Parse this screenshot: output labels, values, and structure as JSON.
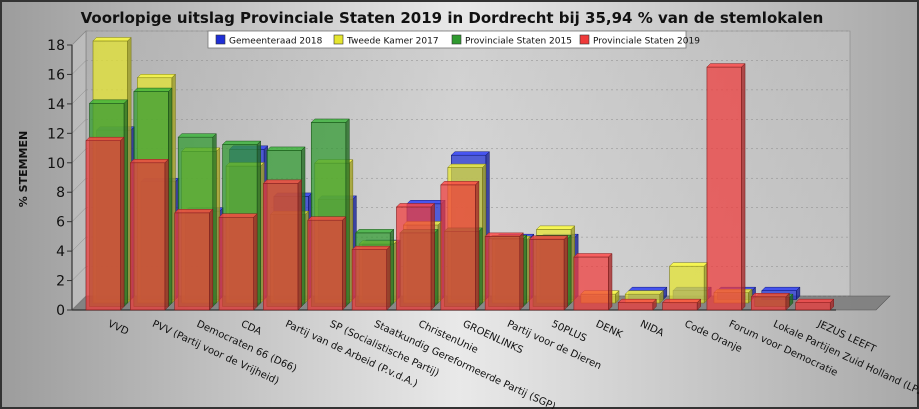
{
  "chart_data": {
    "type": "bar",
    "title": "Voorlopige uitslag Provinciale Staten 2019 in Dordrecht bij 35,94 % van de stemlokalen",
    "xlabel": "",
    "ylabel": "% STEMMEN",
    "ylim": [
      0,
      18
    ],
    "yticks": [
      "0",
      "2",
      "4",
      "6",
      "8",
      "10",
      "12",
      "14",
      "16",
      "18"
    ],
    "legend_position": "top-center",
    "categories": [
      "VVD",
      "PVV (Partij voor de Vrijheid)",
      "Democraten 66 (D66)",
      "CDA",
      "Partij van de Arbeid (P.v.d.A.)",
      "SP (Socialistische Partij)",
      "Staatkundig Gereformeerde Partij (SGP)",
      "ChristenUnie",
      "GROENLINKS",
      "Partij voor de Dieren",
      "50PLUS",
      "DENK",
      "NIDA",
      "Code Oranje",
      "Forum voor Democratie",
      "Lokale Partijen Zuid Holland (LPZH)",
      "JEZUS LEEFT"
    ],
    "series": [
      {
        "name": "Gemeenteraad 2018",
        "color": "#1f2fd6",
        "values": [
          11.5,
          8.0,
          6.0,
          10.2,
          7.0,
          6.8,
          3.8,
          6.5,
          9.8,
          4.2,
          4.2,
          0,
          0.6,
          0.6,
          0.6,
          0.6,
          0
        ]
      },
      {
        "name": "Tweede Kamer 2017",
        "color": "#e6e62e",
        "values": [
          17.8,
          15.3,
          10.3,
          9.3,
          6.0,
          9.5,
          4.0,
          5.3,
          9.2,
          4.3,
          5.0,
          0.6,
          0.6,
          2.5,
          0.7,
          0,
          0
        ]
      },
      {
        "name": "Provinciale Staten 2015",
        "color": "#2f9a2f",
        "values": [
          13.8,
          14.6,
          11.5,
          11.0,
          10.6,
          12.5,
          5.0,
          5.0,
          5.1,
          4.6,
          4.6,
          0,
          0,
          0,
          0,
          0.6,
          0
        ]
      },
      {
        "name": "Provinciale Staten 2019",
        "color": "#f03a3a",
        "values": [
          11.5,
          10.0,
          6.6,
          6.3,
          8.6,
          6.1,
          4.1,
          7.0,
          8.5,
          5.0,
          4.8,
          3.6,
          0.5,
          0.5,
          16.5,
          0.9,
          0.5
        ]
      }
    ]
  }
}
